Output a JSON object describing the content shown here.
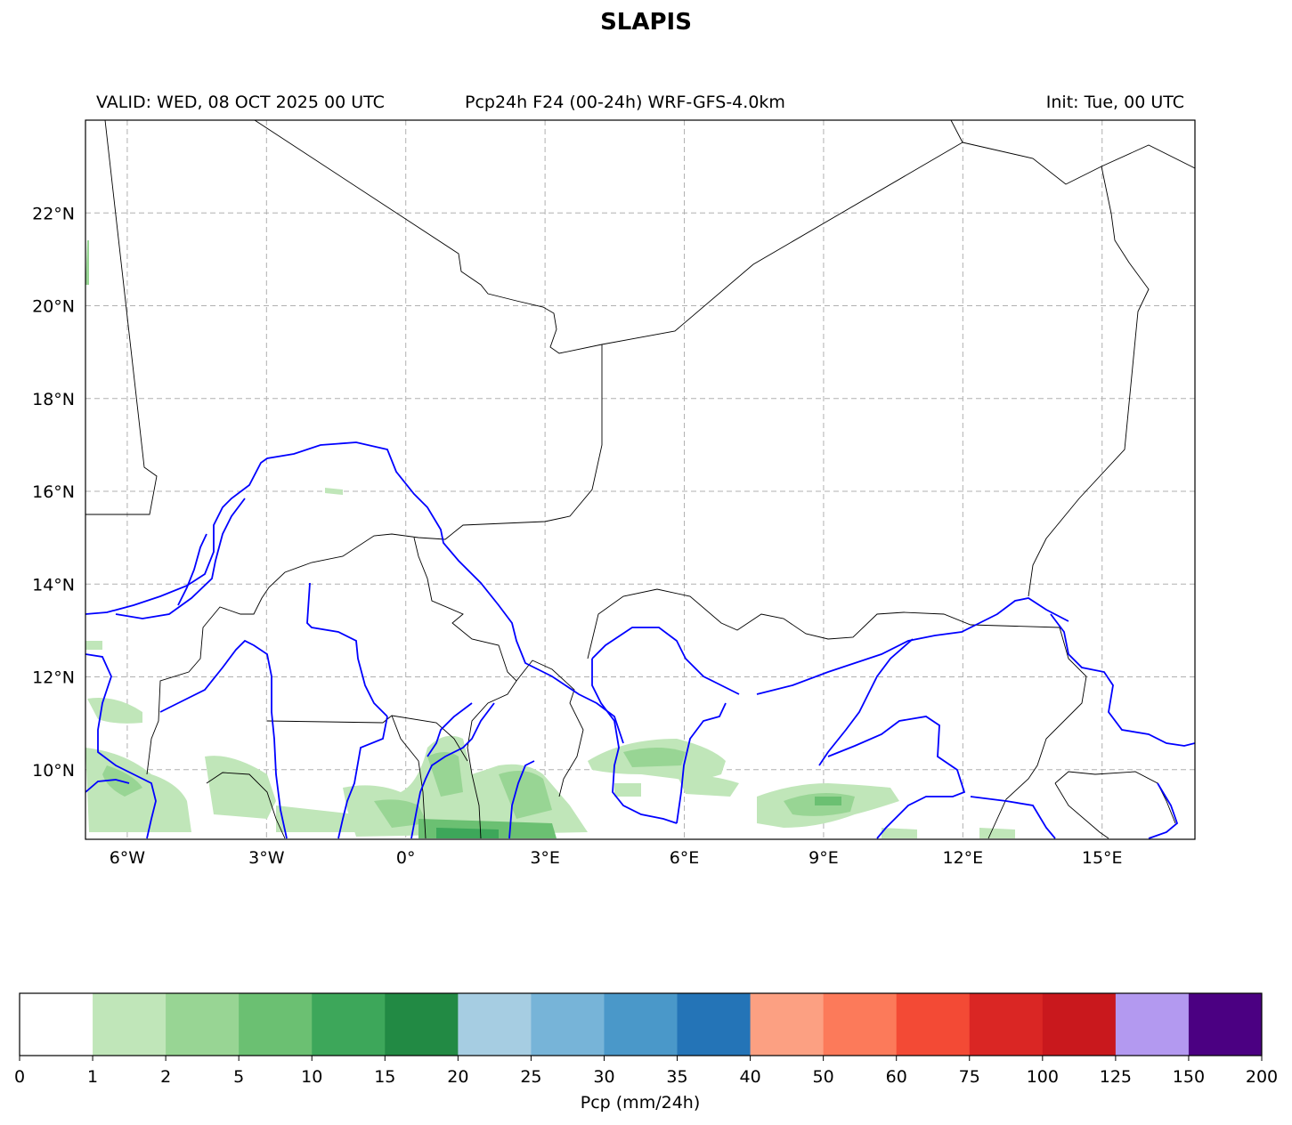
{
  "title": "SLAPIS",
  "header": {
    "valid": "VALID: WED, 08 OCT 2025 00 UTC",
    "product": "Pcp24h F24 (00-24h) WRF-GFS-4.0km",
    "init": "Init: Tue, 00 UTC"
  },
  "map": {
    "lon_range": [
      -6.9,
      17.0
    ],
    "lat_range": [
      8.5,
      24.0
    ],
    "lat_ticks": [
      "22°N",
      "20°N",
      "18°N",
      "16°N",
      "14°N",
      "12°N",
      "10°N"
    ],
    "lat_values": [
      22,
      20,
      18,
      16,
      14,
      12,
      10
    ],
    "lon_ticks": [
      "6°W",
      "3°W",
      "0°",
      "3°E",
      "6°E",
      "9°E",
      "12°E",
      "15°E"
    ],
    "lon_values": [
      -6,
      -3,
      0,
      3,
      6,
      9,
      12,
      15
    ],
    "gridlines": true,
    "border_color": "#000000",
    "river_color": "#0000ff"
  },
  "colorbar": {
    "label": "Pcp (mm/24h)",
    "ticks": [
      "0",
      "1",
      "2",
      "5",
      "10",
      "15",
      "20",
      "25",
      "30",
      "35",
      "40",
      "50",
      "60",
      "75",
      "100",
      "125",
      "150",
      "200"
    ],
    "colors": [
      "#ffffff",
      "#c0e6b9",
      "#98d594",
      "#6bc072",
      "#3da75a",
      "#228a44",
      "#a6cde2",
      "#77b4d8",
      "#4a98c9",
      "#2474b7",
      "#fca082",
      "#fc7a5a",
      "#f34a35",
      "#da2624",
      "#c9181d",
      "#b399f0",
      "#4b0082"
    ]
  }
}
